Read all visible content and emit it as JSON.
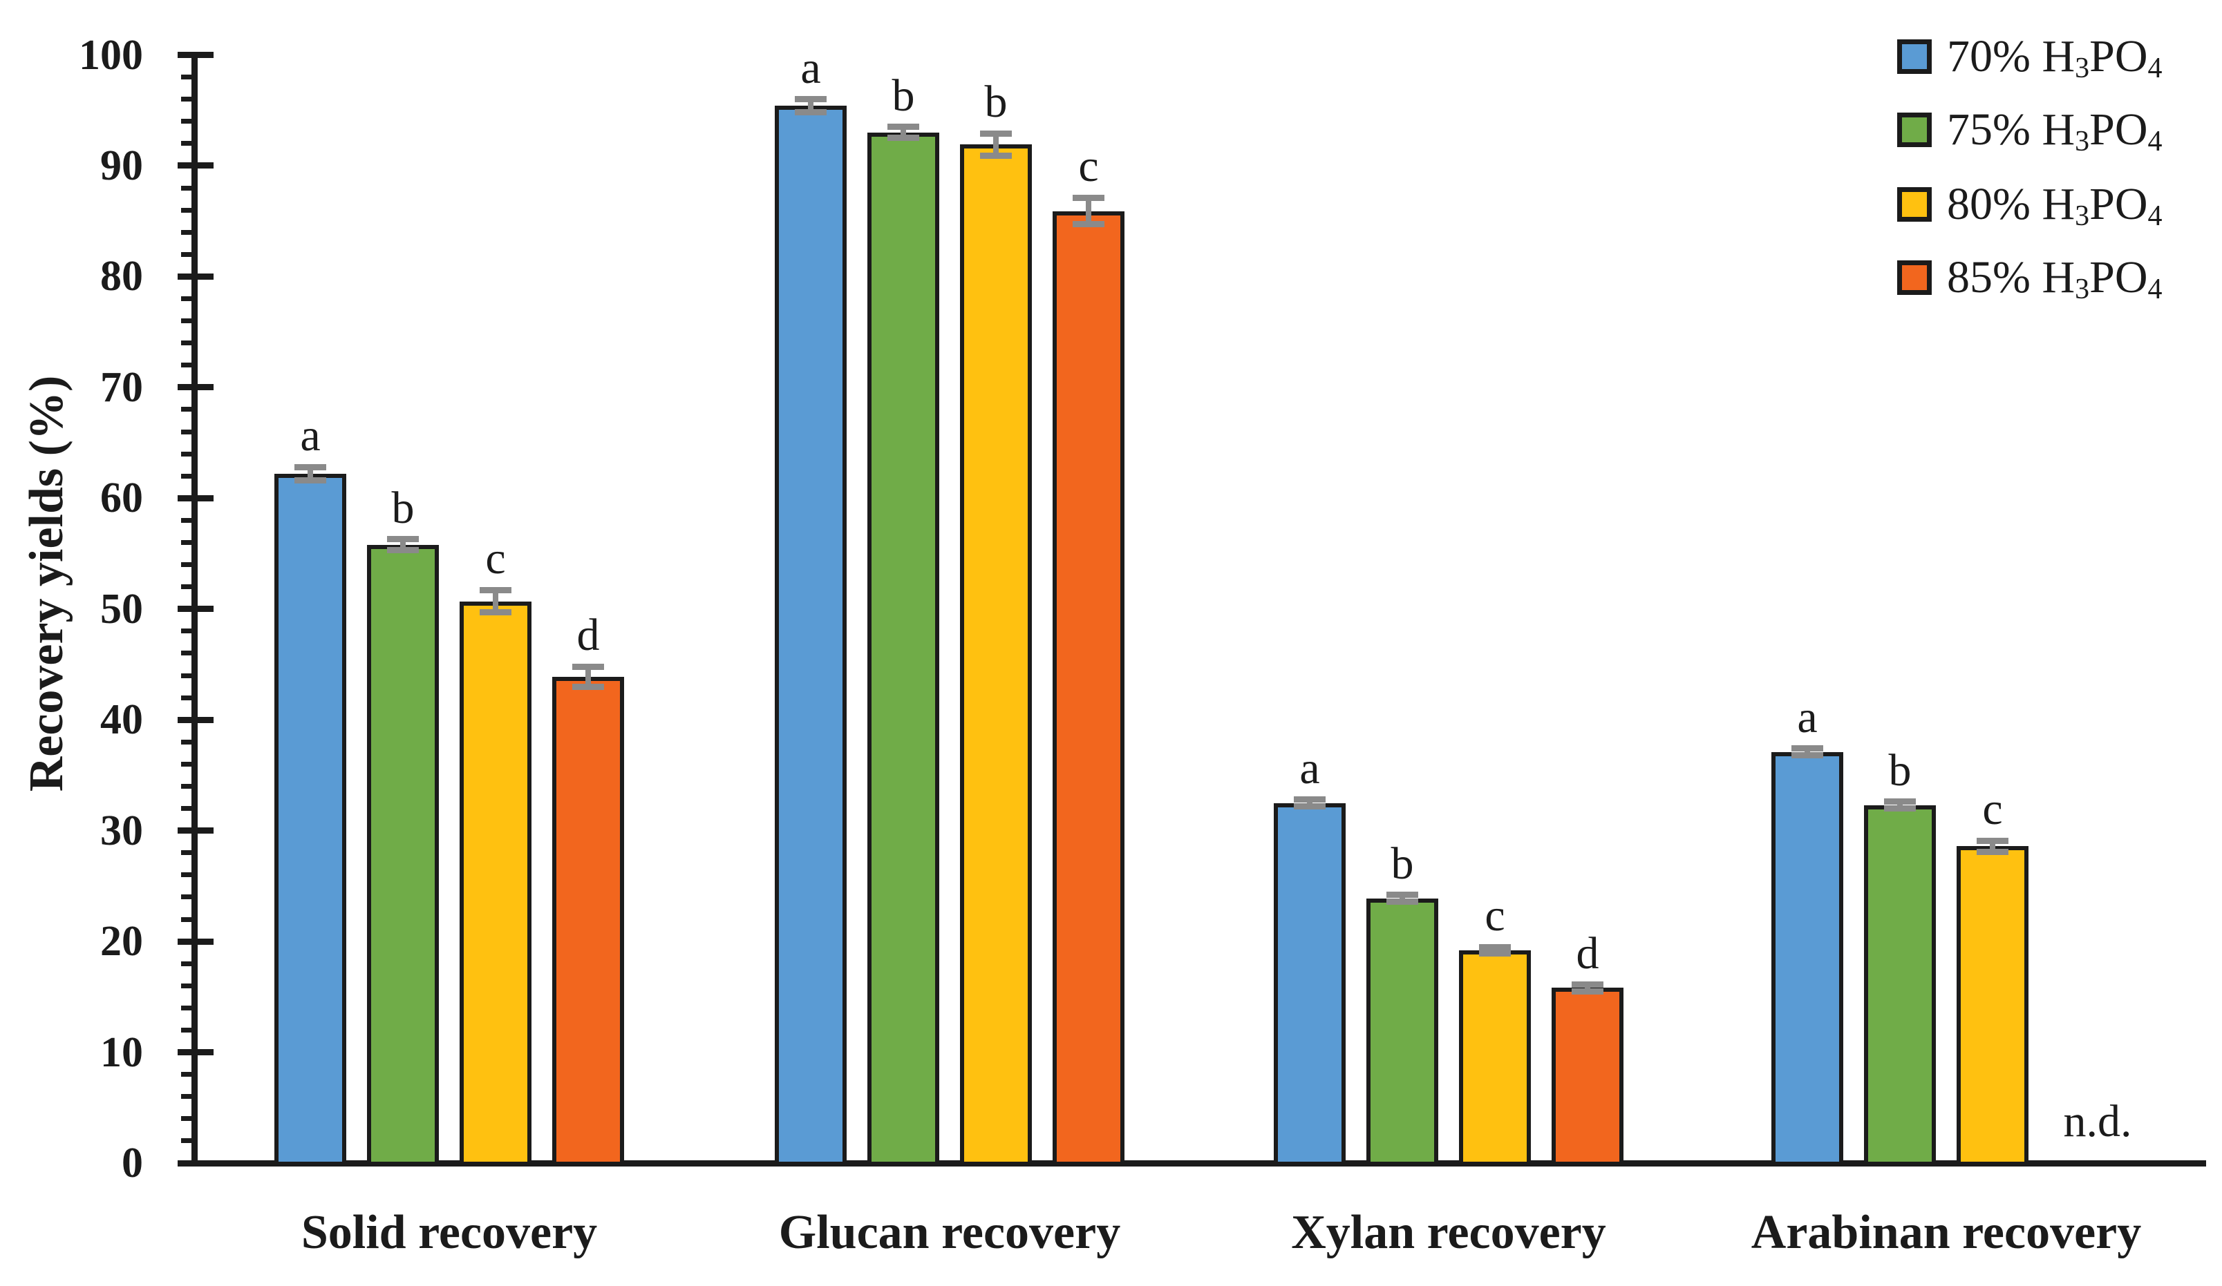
{
  "chart_data": {
    "type": "bar",
    "title": "",
    "ylabel": "Recovery yields (%)",
    "xlabel": "",
    "ylim": [
      0,
      100
    ],
    "y_ticks": [
      0,
      10,
      20,
      30,
      40,
      50,
      60,
      70,
      80,
      90,
      100
    ],
    "y_minor_step": 2,
    "grid": false,
    "legend_position": "top-right",
    "nd_label": "n.d.",
    "categories": [
      "Solid recovery",
      "Glucan recovery",
      "Xylan recovery",
      "Arabinan recovery"
    ],
    "series": [
      {
        "name": "70% H3PO4",
        "color": "#5A9BD4",
        "values": [
          62.2,
          95.4,
          32.5,
          37.1
        ],
        "errors": [
          0.6,
          0.6,
          0.3,
          0.3
        ],
        "sig_letters": [
          "a",
          "a",
          "a",
          "a"
        ],
        "legend": {
          "conc": "70% ",
          "formula": [
            {
              "t": "H",
              "sub": false
            },
            {
              "t": "3",
              "sub": true
            },
            {
              "t": "PO",
              "sub": false
            },
            {
              "t": "4",
              "sub": true
            }
          ]
        }
      },
      {
        "name": "75% H3PO4",
        "color": "#70AC48",
        "values": [
          55.8,
          93.0,
          23.9,
          32.3
        ],
        "errors": [
          0.5,
          0.5,
          0.3,
          0.3
        ],
        "sig_letters": [
          "b",
          "b",
          "b",
          "b"
        ],
        "legend": {
          "conc": "75% ",
          "formula": [
            {
              "t": "H",
              "sub": false
            },
            {
              "t": "3",
              "sub": true
            },
            {
              "t": "PO",
              "sub": false
            },
            {
              "t": "4",
              "sub": true
            }
          ]
        }
      },
      {
        "name": "80% H3PO4",
        "color": "#FFC110",
        "values": [
          50.7,
          91.9,
          19.2,
          28.6
        ],
        "errors": [
          1.0,
          1.0,
          0.3,
          0.5
        ],
        "sig_letters": [
          "c",
          "b",
          "c",
          "c"
        ],
        "legend": {
          "conc": "80% ",
          "formula": [
            {
              "t": "H",
              "sub": false
            },
            {
              "t": "3",
              "sub": true
            },
            {
              "t": "PO",
              "sub": false
            },
            {
              "t": "4",
              "sub": true
            }
          ]
        }
      },
      {
        "name": "85% H3PO4",
        "color": "#F2661E",
        "values": [
          43.9,
          85.9,
          15.8,
          null
        ],
        "errors": [
          0.9,
          1.2,
          0.3,
          null
        ],
        "sig_letters": [
          "d",
          "c",
          "d",
          null
        ],
        "legend": {
          "conc": "85% ",
          "formula": [
            {
              "t": "H",
              "sub": false
            },
            {
              "t": "3",
              "sub": true
            },
            {
              "t": "PO",
              "sub": false
            },
            {
              "t": "4",
              "sub": true
            }
          ]
        }
      }
    ],
    "axis_color": "#1b1b1b",
    "error_bar_color": "#8a8a8a"
  }
}
